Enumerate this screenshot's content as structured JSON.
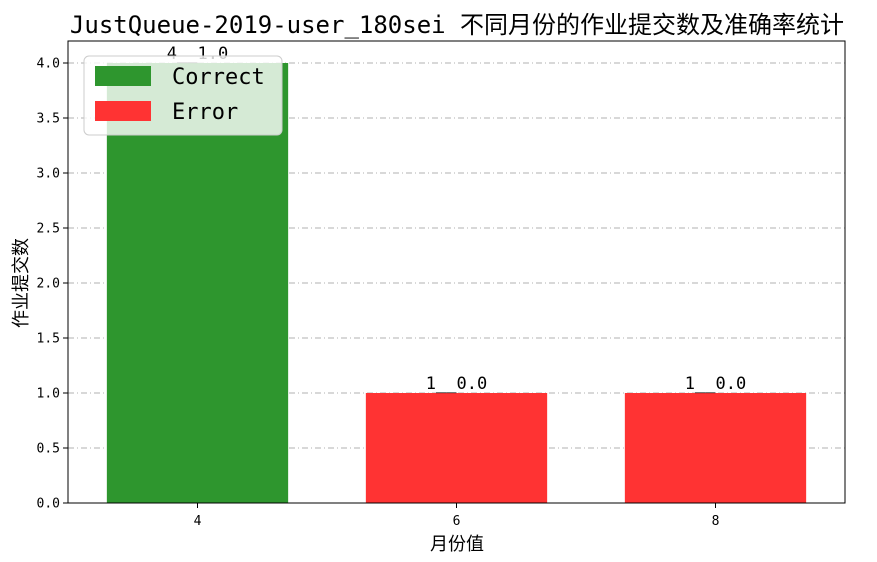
{
  "chart_data": {
    "type": "bar",
    "title": "JustQueue-2019-user_180sei 不同月份的作业提交数及准确率统计",
    "xlabel": "月份值",
    "ylabel": "作业提交数",
    "categories": [
      "4",
      "6",
      "8"
    ],
    "series": [
      {
        "name": "Correct",
        "color": "#2e962e",
        "values": [
          4,
          0,
          0
        ]
      },
      {
        "name": "Error",
        "color": "#ff3333",
        "values": [
          0,
          1,
          1
        ]
      }
    ],
    "bar_labels": [
      "4__1.0",
      "1__0.0",
      "1__0.0"
    ],
    "ylim": [
      0,
      4.2
    ],
    "yticks": [
      "0.0",
      "0.5",
      "1.0",
      "1.5",
      "2.0",
      "2.5",
      "3.0",
      "3.5",
      "4.0"
    ],
    "grid": true,
    "legend_position": "top-left"
  }
}
